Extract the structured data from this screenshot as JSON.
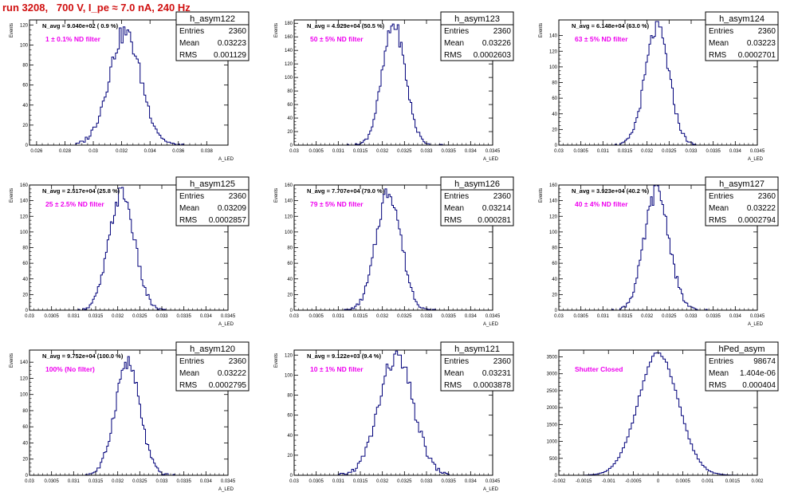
{
  "run_title": "run 3208,   700 V, I_pe ≈ 7.0 nA, 240 Hz",
  "colors": {
    "line": "#00007a",
    "title": "#d01010",
    "note": "#ee00ee",
    "frame": "#000000"
  },
  "chart_data": [
    {
      "type": "histogram",
      "name": "h_asym122",
      "avg_text": "N_avg = 9.040e+02 ( 0.9 %)",
      "note": "1 ± 0.1% ND filter",
      "stats": [
        [
          "Entries",
          "2360"
        ],
        [
          "Mean",
          "0.03223"
        ],
        [
          "RMS",
          "0.001129"
        ]
      ],
      "xlabel": "A_LED",
      "ylabel": "Events",
      "xlim": [
        0.0255,
        0.0395
      ],
      "ylim": [
        0,
        125
      ],
      "xticks": [
        0.026,
        0.028,
        0.03,
        0.032,
        0.034,
        0.036,
        0.038
      ],
      "xtick_labels": [
        "0.026",
        "0.028",
        "0.03",
        "0.032",
        "0.034",
        "0.036",
        "0.038"
      ],
      "yticks": [
        0,
        20,
        40,
        60,
        80,
        100,
        120
      ],
      "dist": {
        "mean": 0.03223,
        "sigma": 0.00113,
        "peak": 112,
        "nbins": 60,
        "range": [
          0.0285,
          0.0365
        ]
      }
    },
    {
      "type": "histogram",
      "name": "h_asym123",
      "avg_text": "N_avg = 4.929e+04 (50.5 %)",
      "note": "50 ± 5% ND filter",
      "stats": [
        [
          "Entries",
          "2360"
        ],
        [
          "Mean",
          "0.03226"
        ],
        [
          "RMS",
          "0.0002603"
        ]
      ],
      "xlabel": "A_LED",
      "ylabel": "Events",
      "xlim": [
        0.03,
        0.0345
      ],
      "ylim": [
        0,
        185
      ],
      "xticks": [
        0.03,
        0.0305,
        0.031,
        0.0315,
        0.032,
        0.0325,
        0.033,
        0.0335,
        0.034,
        0.0345
      ],
      "xtick_labels": [
        "0.03",
        "0.0305",
        "0.031",
        "0.0315",
        "0.032",
        "0.0325",
        "0.033",
        "0.0335",
        "0.034",
        "0.0345"
      ],
      "yticks": [
        0,
        20,
        40,
        60,
        80,
        100,
        120,
        140,
        160,
        180
      ],
      "dist": {
        "mean": 0.03226,
        "sigma": 0.00026,
        "peak": 178,
        "nbins": 60,
        "range": [
          0.0312,
          0.0334
        ]
      }
    },
    {
      "type": "histogram",
      "name": "h_asym124",
      "avg_text": "N_avg = 6.148e+04 (63.0 %)",
      "note": "63 ± 5% ND filter",
      "stats": [
        [
          "Entries",
          "2360"
        ],
        [
          "Mean",
          "0.03223"
        ],
        [
          "RMS",
          "0.0002701"
        ]
      ],
      "xlabel": "A_LED",
      "ylabel": "Events",
      "xlim": [
        0.03,
        0.0345
      ],
      "ylim": [
        0,
        160
      ],
      "xticks": [
        0.03,
        0.0305,
        0.031,
        0.0315,
        0.032,
        0.0325,
        0.033,
        0.0335,
        0.034,
        0.0345
      ],
      "xtick_labels": [
        "0.03",
        "0.0305",
        "0.031",
        "0.0315",
        "0.032",
        "0.0325",
        "0.033",
        "0.0335",
        "0.034",
        "0.0345"
      ],
      "yticks": [
        0,
        20,
        40,
        60,
        80,
        100,
        120,
        140
      ],
      "dist": {
        "mean": 0.03223,
        "sigma": 0.00027,
        "peak": 150,
        "nbins": 60,
        "range": [
          0.0312,
          0.0334
        ]
      }
    },
    {
      "type": "histogram",
      "name": "h_asym125",
      "avg_text": "N_avg = 2.517e+04 (25.8 %)",
      "note": "25 ± 2.5% ND filter",
      "stats": [
        [
          "Entries",
          "2360"
        ],
        [
          "Mean",
          "0.03209"
        ],
        [
          "RMS",
          "0.0002857"
        ]
      ],
      "xlabel": "A_LED",
      "ylabel": "Events",
      "xlim": [
        0.03,
        0.0345
      ],
      "ylim": [
        0,
        160
      ],
      "xticks": [
        0.03,
        0.0305,
        0.031,
        0.0315,
        0.032,
        0.0325,
        0.033,
        0.0335,
        0.034,
        0.0345
      ],
      "xtick_labels": [
        "0.03",
        "0.0305",
        "0.031",
        "0.0315",
        "0.032",
        "0.0325",
        "0.033",
        "0.0335",
        "0.034",
        "0.0345"
      ],
      "yticks": [
        0,
        20,
        40,
        60,
        80,
        100,
        120,
        140,
        160
      ],
      "dist": {
        "mean": 0.03209,
        "sigma": 0.000286,
        "peak": 150,
        "nbins": 60,
        "range": [
          0.0311,
          0.0333
        ]
      }
    },
    {
      "type": "histogram",
      "name": "h_asym126",
      "avg_text": "N_avg = 7.707e+04 (79.0 %)",
      "note": "79 ± 5% ND filter",
      "stats": [
        [
          "Entries",
          "2360"
        ],
        [
          "Mean",
          "0.03214"
        ],
        [
          "RMS",
          "0.000281"
        ]
      ],
      "xlabel": "A_LED",
      "ylabel": "Events",
      "xlim": [
        0.03,
        0.0345
      ],
      "ylim": [
        0,
        160
      ],
      "xticks": [
        0.03,
        0.0305,
        0.031,
        0.0315,
        0.032,
        0.0325,
        0.033,
        0.0335,
        0.034,
        0.0345
      ],
      "xtick_labels": [
        "0.03",
        "0.0305",
        "0.031",
        "0.0315",
        "0.032",
        "0.0325",
        "0.033",
        "0.0335",
        "0.034",
        "0.0345"
      ],
      "yticks": [
        0,
        20,
        40,
        60,
        80,
        100,
        120,
        140,
        160
      ],
      "dist": {
        "mean": 0.03214,
        "sigma": 0.000281,
        "peak": 152,
        "nbins": 60,
        "range": [
          0.0311,
          0.0334
        ]
      }
    },
    {
      "type": "histogram",
      "name": "h_asym127",
      "avg_text": "N_avg = 3.923e+04 (40.2 %)",
      "note": "40 ± 4% ND filter",
      "stats": [
        [
          "Entries",
          "2360"
        ],
        [
          "Mean",
          "0.03222"
        ],
        [
          "RMS",
          "0.0002794"
        ]
      ],
      "xlabel": "A_LED",
      "ylabel": "Events",
      "xlim": [
        0.03,
        0.0345
      ],
      "ylim": [
        0,
        160
      ],
      "xticks": [
        0.03,
        0.0305,
        0.031,
        0.0315,
        0.032,
        0.0325,
        0.033,
        0.0335,
        0.034,
        0.0345
      ],
      "xtick_labels": [
        "0.03",
        "0.0305",
        "0.031",
        "0.0315",
        "0.032",
        "0.0325",
        "0.033",
        "0.0335",
        "0.034",
        "0.0345"
      ],
      "yticks": [
        0,
        20,
        40,
        60,
        80,
        100,
        120,
        140,
        160
      ],
      "dist": {
        "mean": 0.03222,
        "sigma": 0.000279,
        "peak": 152,
        "nbins": 60,
        "range": [
          0.0312,
          0.0334
        ]
      }
    },
    {
      "type": "histogram",
      "name": "h_asym120",
      "avg_text": "N_avg = 9.752e+04 (100.0 %)",
      "note": "100% (No filter)",
      "stats": [
        [
          "Entries",
          "2360"
        ],
        [
          "Mean",
          "0.03222"
        ],
        [
          "RMS",
          "0.0002795"
        ]
      ],
      "xlabel": "A_LED",
      "ylabel": "Events",
      "xlim": [
        0.03,
        0.0345
      ],
      "ylim": [
        0,
        155
      ],
      "xticks": [
        0.03,
        0.0305,
        0.031,
        0.0315,
        0.032,
        0.0325,
        0.033,
        0.0335,
        0.034,
        0.0345
      ],
      "xtick_labels": [
        "0.03",
        "0.0305",
        "0.031",
        "0.0315",
        "0.032",
        "0.0325",
        "0.033",
        "0.0335",
        "0.034",
        "0.0345"
      ],
      "yticks": [
        0,
        20,
        40,
        60,
        80,
        100,
        120,
        140
      ],
      "dist": {
        "mean": 0.03222,
        "sigma": 0.00028,
        "peak": 140,
        "nbins": 60,
        "range": [
          0.0312,
          0.0334
        ]
      }
    },
    {
      "type": "histogram",
      "name": "h_asym121",
      "avg_text": "N_avg = 9.122e+03 (9.4 %)",
      "note": "10 ± 1% ND filter",
      "stats": [
        [
          "Entries",
          "2360"
        ],
        [
          "Mean",
          "0.03231"
        ],
        [
          "RMS",
          "0.0003878"
        ]
      ],
      "xlabel": "A_LED",
      "ylabel": "Events",
      "xlim": [
        0.03,
        0.0345
      ],
      "ylim": [
        0,
        125
      ],
      "xticks": [
        0.03,
        0.0305,
        0.031,
        0.0315,
        0.032,
        0.0325,
        0.033,
        0.0335,
        0.034,
        0.0345
      ],
      "xtick_labels": [
        "0.03",
        "0.0305",
        "0.031",
        "0.0315",
        "0.032",
        "0.0325",
        "0.033",
        "0.0335",
        "0.034",
        "0.0345"
      ],
      "yticks": [
        0,
        20,
        40,
        60,
        80,
        100,
        120
      ],
      "dist": {
        "mean": 0.03231,
        "sigma": 0.000388,
        "peak": 118,
        "nbins": 60,
        "range": [
          0.031,
          0.0336
        ]
      }
    },
    {
      "type": "histogram",
      "name": "hPed_asym",
      "avg_text": "",
      "note": "Shutter Closed",
      "stats": [
        [
          "Entries",
          "98674"
        ],
        [
          "Mean",
          "1.404e-06"
        ],
        [
          "RMS",
          "0.000404"
        ]
      ],
      "xlabel": "",
      "ylabel": "",
      "xlim": [
        -0.002,
        0.002
      ],
      "ylim": [
        0,
        3700
      ],
      "xticks": [
        -0.002,
        -0.0015,
        -0.001,
        -0.0005,
        0,
        0.0005,
        0.001,
        0.0015,
        0.002
      ],
      "xtick_labels": [
        "-0.002",
        "-0.0015",
        "-0.001",
        "-0.0005",
        "0",
        "0.0005",
        "0.001",
        "0.0015",
        "0.002"
      ],
      "yticks": [
        0,
        500,
        1000,
        1500,
        2000,
        2500,
        3000,
        3500
      ],
      "dist": {
        "mean": 1.4e-06,
        "sigma": 0.000404,
        "peak": 3600,
        "nbins": 70,
        "range": [
          -0.0015,
          0.0017
        ]
      }
    }
  ]
}
